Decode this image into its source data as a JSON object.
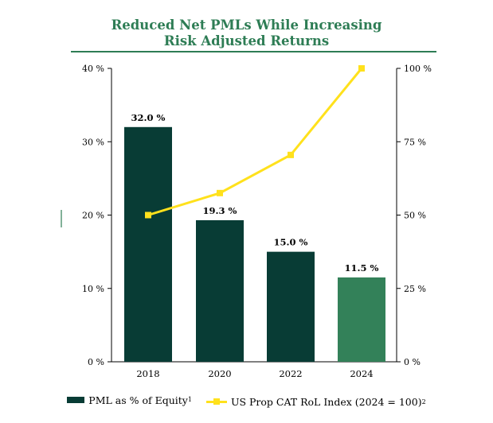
{
  "title_line1": "Reduced Net PMLs While Increasing",
  "title_line2": "Risk Adjusted Returns",
  "chart_data": {
    "type": "bar",
    "categories": [
      "2018",
      "2020",
      "2022",
      "2024"
    ],
    "series": [
      {
        "name": "PML as % of Equity",
        "footnote": "1",
        "type": "bar",
        "axis": "left",
        "values": [
          32.0,
          19.3,
          15.0,
          11.5
        ],
        "data_labels": [
          "32.0 %",
          "19.3 %",
          "15.0 %",
          "11.5 %"
        ],
        "colors": [
          "#083c35",
          "#083c35",
          "#083c35",
          "#338159"
        ]
      },
      {
        "name": "US Prop CAT RoL Index (2024 = 100)",
        "footnote": "2",
        "type": "line",
        "axis": "right",
        "values": [
          50,
          57.5,
          70.5,
          100
        ],
        "color": "#ffe11c"
      }
    ],
    "y_left": {
      "min": 0,
      "max": 40,
      "ticks": [
        0,
        10,
        20,
        30,
        40
      ],
      "tick_labels": [
        "0 %",
        "10 %",
        "20 %",
        "30 %",
        "40 %"
      ]
    },
    "y_right": {
      "min": 0,
      "max": 100,
      "ticks": [
        0,
        25,
        50,
        75,
        100
      ],
      "tick_labels": [
        "0 %",
        "25 %",
        "50 %",
        "75 %",
        "100 %"
      ]
    },
    "grid": false,
    "legend_position": "bottom"
  },
  "legend": {
    "bar_label": "PML as % of Equity",
    "bar_sup": "1",
    "line_label": "US Prop CAT RoL Index (2024 = 100)",
    "line_sup": "2"
  }
}
